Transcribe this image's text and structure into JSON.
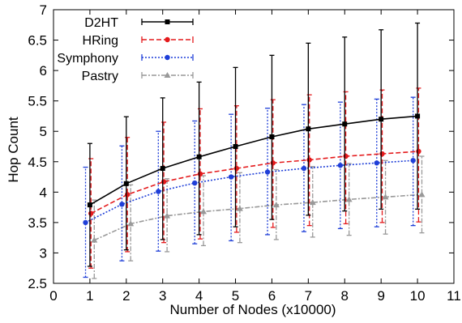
{
  "chart_data": {
    "type": "line",
    "title": "",
    "xlabel": "Number of Nodes (x10000)",
    "ylabel": "Hop Count",
    "xlim": [
      0,
      11
    ],
    "ylim": [
      2.5,
      7
    ],
    "xticks": [
      0,
      1,
      2,
      3,
      4,
      5,
      6,
      7,
      8,
      9,
      10,
      11
    ],
    "yticks": [
      2.5,
      3,
      3.5,
      4,
      4.5,
      5,
      5.5,
      6,
      6.5,
      7
    ],
    "ytick_labels": [
      "2.5",
      "3",
      "3.5",
      "4",
      "4.5",
      "5",
      "5.5",
      "6",
      "6.5",
      "7"
    ],
    "grid": false,
    "legend_position": "top-left",
    "x": [
      1,
      2,
      3,
      4,
      5,
      6,
      7,
      8,
      9,
      10
    ],
    "series": [
      {
        "name": "D2HT",
        "color": "#000000",
        "marker": "square",
        "line": "solid",
        "x_offset": 0,
        "values": [
          3.79,
          4.14,
          4.39,
          4.58,
          4.75,
          4.91,
          5.04,
          5.12,
          5.2,
          5.25
        ],
        "err_low": [
          2.78,
          3.05,
          3.22,
          3.3,
          3.43,
          3.55,
          3.62,
          3.69,
          3.72,
          3.72
        ],
        "err_high": [
          4.8,
          5.24,
          5.55,
          5.81,
          6.05,
          6.25,
          6.45,
          6.55,
          6.67,
          6.78
        ]
      },
      {
        "name": "HRing",
        "color": "#e41a1c",
        "marker": "circle",
        "line": "dashed",
        "x_offset": 0.03,
        "values": [
          3.65,
          3.96,
          4.17,
          4.3,
          4.39,
          4.48,
          4.53,
          4.59,
          4.63,
          4.67
        ],
        "err_low": [
          2.75,
          3.02,
          3.17,
          3.23,
          3.34,
          3.42,
          3.45,
          3.48,
          3.5,
          3.51
        ],
        "err_high": [
          4.55,
          4.9,
          5.15,
          5.37,
          5.42,
          5.52,
          5.6,
          5.65,
          5.68,
          5.71
        ]
      },
      {
        "name": "Symphony",
        "color": "#1f3fd8",
        "marker": "circle",
        "line": "dotted",
        "x_offset": -0.12,
        "values": [
          3.5,
          3.8,
          4.01,
          4.15,
          4.25,
          4.33,
          4.39,
          4.44,
          4.48,
          4.52
        ],
        "err_low": [
          2.6,
          2.87,
          3.03,
          3.15,
          3.2,
          3.3,
          3.35,
          3.4,
          3.43,
          3.45
        ],
        "err_high": [
          4.41,
          4.76,
          5.0,
          5.17,
          5.28,
          5.38,
          5.44,
          5.48,
          5.53,
          5.56
        ]
      },
      {
        "name": "Pastry",
        "color": "#999999",
        "marker": "triangle",
        "line": "dashdot",
        "x_offset": 0.12,
        "values": [
          3.21,
          3.48,
          3.61,
          3.68,
          3.73,
          3.79,
          3.83,
          3.88,
          3.92,
          3.96
        ],
        "err_low": [
          2.58,
          2.87,
          3.02,
          3.12,
          3.17,
          3.22,
          3.26,
          3.29,
          3.31,
          3.33
        ],
        "err_high": [
          3.87,
          4.12,
          4.22,
          4.27,
          4.32,
          4.37,
          4.42,
          4.47,
          4.52,
          4.59
        ]
      }
    ]
  }
}
